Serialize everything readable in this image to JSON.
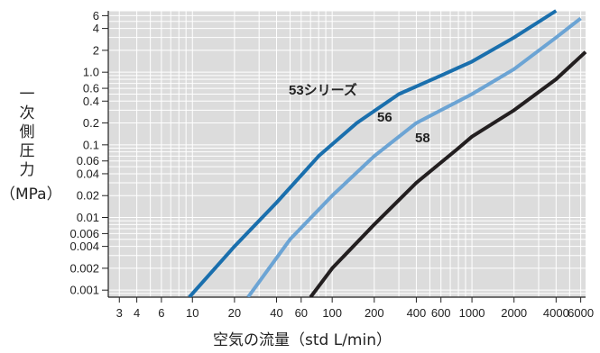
{
  "chart_data": {
    "type": "line",
    "title": "",
    "xlabel": "空気の流量（std L/min）",
    "ylabel_vertical": [
      "一",
      "次",
      "側",
      "圧",
      "力"
    ],
    "ylabel_unit": "（MPa）",
    "x_scale": "log",
    "y_scale": "log",
    "xlim": [
      2.5,
      6500
    ],
    "ylim": [
      0.0008,
      7
    ],
    "grid": true,
    "legend": "none (inline labels)",
    "x_ticks": [
      {
        "value": 3,
        "label": "3"
      },
      {
        "value": 4,
        "label": "4"
      },
      {
        "value": 6,
        "label": "6"
      },
      {
        "value": 10,
        "label": "10"
      },
      {
        "value": 20,
        "label": "20"
      },
      {
        "value": 40,
        "label": "40"
      },
      {
        "value": 60,
        "label": "60"
      },
      {
        "value": 100,
        "label": "100"
      },
      {
        "value": 200,
        "label": "200"
      },
      {
        "value": 400,
        "label": "400"
      },
      {
        "value": 600,
        "label": "600"
      },
      {
        "value": 1000,
        "label": "1000"
      },
      {
        "value": 2000,
        "label": "2000"
      },
      {
        "value": 4000,
        "label": "4000"
      },
      {
        "value": 6000,
        "label": "6000"
      }
    ],
    "y_ticks": [
      {
        "value": 6,
        "label": "6"
      },
      {
        "value": 4,
        "label": "4"
      },
      {
        "value": 2,
        "label": "2"
      },
      {
        "value": 1,
        "label": "1.0"
      },
      {
        "value": 0.6,
        "label": "0.6"
      },
      {
        "value": 0.4,
        "label": "0.4"
      },
      {
        "value": 0.2,
        "label": "0.2"
      },
      {
        "value": 0.1,
        "label": "0.1"
      },
      {
        "value": 0.06,
        "label": "0.06"
      },
      {
        "value": 0.04,
        "label": "0.04"
      },
      {
        "value": 0.02,
        "label": "0.02"
      },
      {
        "value": 0.01,
        "label": "0.01"
      },
      {
        "value": 0.006,
        "label": "0.006"
      },
      {
        "value": 0.004,
        "label": "0.004"
      },
      {
        "value": 0.002,
        "label": "0.002"
      },
      {
        "value": 0.001,
        "label": "0.001"
      }
    ],
    "series": [
      {
        "name": "53シリーズ",
        "color": "#1a6fad",
        "x": [
          9.5,
          20,
          40,
          80,
          150,
          300,
          600,
          1000,
          2000,
          4000
        ],
        "y": [
          0.0008,
          0.004,
          0.016,
          0.07,
          0.2,
          0.5,
          0.9,
          1.4,
          3.0,
          7.0
        ]
      },
      {
        "name": "56",
        "color": "#6ca4d4",
        "x": [
          25,
          50,
          100,
          200,
          400,
          600,
          1000,
          2000,
          4000,
          6000
        ],
        "y": [
          0.0008,
          0.005,
          0.02,
          0.07,
          0.2,
          0.3,
          0.5,
          1.1,
          3.0,
          5.5
        ]
      },
      {
        "name": "58",
        "color": "#231f20",
        "x": [
          70,
          100,
          200,
          400,
          800,
          1000,
          2000,
          4000,
          6500
        ],
        "y": [
          0.0008,
          0.002,
          0.008,
          0.03,
          0.09,
          0.13,
          0.3,
          0.8,
          1.9
        ]
      }
    ]
  }
}
